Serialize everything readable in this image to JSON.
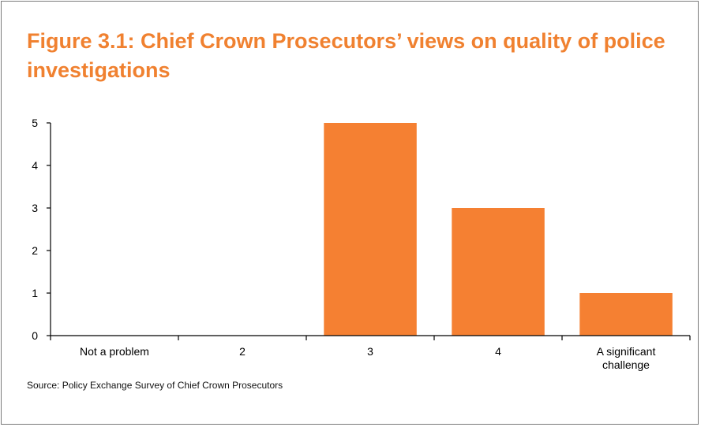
{
  "chart_data": {
    "type": "bar",
    "title": "Figure 3.1: Chief Crown Prosecutors’ views on quality of police investigations",
    "categories": [
      "Not a problem",
      "2",
      "3",
      "4",
      "A significant challenge"
    ],
    "category_lines": [
      [
        "Not a problem"
      ],
      [
        "2"
      ],
      [
        "3"
      ],
      [
        "4"
      ],
      [
        "A significant",
        "challenge"
      ]
    ],
    "values": [
      0,
      0,
      5,
      3,
      1
    ],
    "ylim": [
      0,
      5
    ],
    "yticks": [
      0,
      1,
      2,
      3,
      4,
      5
    ],
    "xlabel": "",
    "ylabel": "",
    "grid": false,
    "bar_color": "#f58032",
    "source": "Source: Policy Exchange Survey of Chief Crown Prosecutors"
  }
}
